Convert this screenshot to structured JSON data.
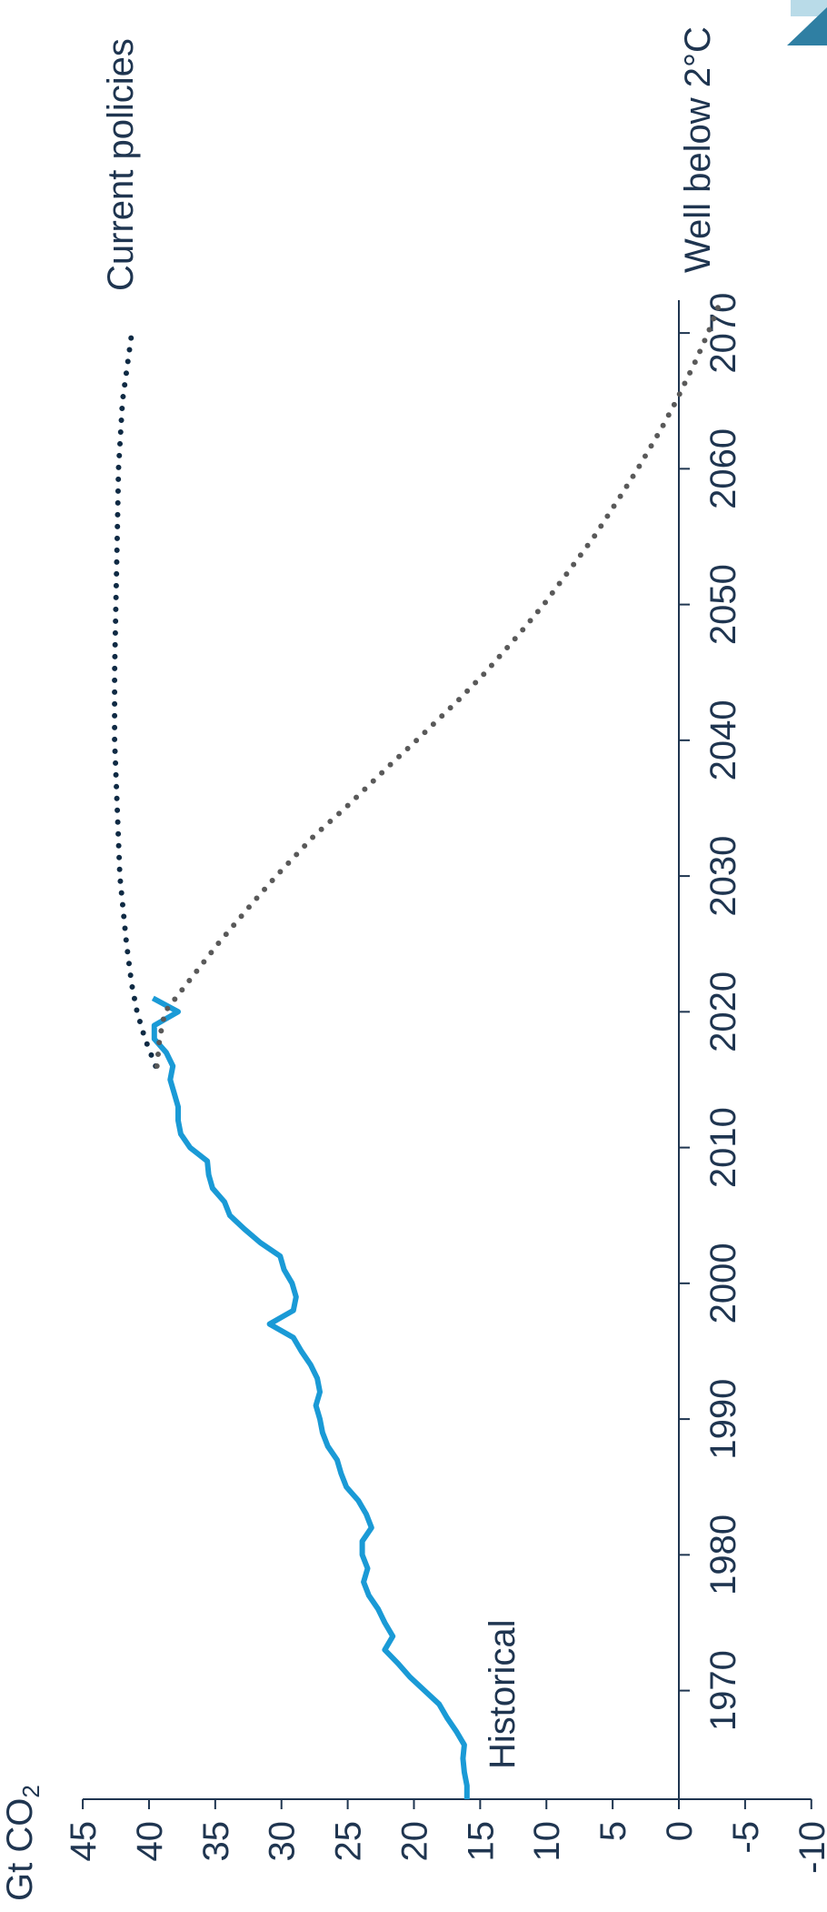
{
  "logo": {
    "color_light": "#b9dbe8",
    "color_dark": "#2f7fa3"
  },
  "chart_data": {
    "type": "line",
    "orientation": "rotated-90-ccw",
    "unit_label": {
      "main": "Gt CO",
      "sub": "2"
    },
    "xlim": [
      1962,
      2072
    ],
    "ylim": [
      -10,
      45
    ],
    "x_ticks": [
      1970,
      1980,
      1990,
      2000,
      2010,
      2020,
      2030,
      2040,
      2050,
      2060,
      2070
    ],
    "y_ticks": [
      45,
      40,
      35,
      30,
      25,
      20,
      15,
      10,
      5,
      0,
      -5,
      -10
    ],
    "grid": false,
    "colors": {
      "Historical": "#1a9ad6",
      "Current policies": "#0f2a44",
      "Well below 2°C": "#595959",
      "axis": "#1f3550"
    },
    "series": [
      {
        "name": "Historical",
        "style": "solid",
        "x": [
          1962,
          1963,
          1964,
          1965,
          1966,
          1967,
          1968,
          1969,
          1970,
          1971,
          1972,
          1973,
          1974,
          1975,
          1976,
          1977,
          1978,
          1979,
          1980,
          1981,
          1982,
          1983,
          1984,
          1985,
          1986,
          1987,
          1988,
          1989,
          1990,
          1991,
          1992,
          1993,
          1994,
          1995,
          1996,
          1997,
          1998,
          1999,
          2000,
          2001,
          2002,
          2003,
          2004,
          2005,
          2006,
          2007,
          2008,
          2009,
          2010,
          2011,
          2012,
          2013,
          2014,
          2015,
          2016,
          2017,
          2018,
          2019,
          2020,
          2021
        ],
        "y": [
          16,
          16,
          16.2,
          16.3,
          16.2,
          16.8,
          17.5,
          18.1,
          19.2,
          20.3,
          21.2,
          22.2,
          21.6,
          22.2,
          22.7,
          23.4,
          23.8,
          23.5,
          23.9,
          23.9,
          23.2,
          23.6,
          24.2,
          25.1,
          25.5,
          25.8,
          26.5,
          26.9,
          27.1,
          27.4,
          27.1,
          27.3,
          27.8,
          28.5,
          29.1,
          30.9,
          29.1,
          28.9,
          29.2,
          29.8,
          30.1,
          31.6,
          32.8,
          33.9,
          34.3,
          35.2,
          35.5,
          35.6,
          36.9,
          37.6,
          37.8,
          37.8,
          38.1,
          38.4,
          38.2,
          38.7,
          39.6,
          39.6,
          37.8,
          39.7
        ]
      },
      {
        "name": "Current policies",
        "style": "dotted",
        "x": [
          2016,
          2018,
          2020,
          2022,
          2025,
          2028,
          2030,
          2035,
          2040,
          2045,
          2050,
          2055,
          2060,
          2065,
          2070
        ],
        "y": [
          39.5,
          40.3,
          40.9,
          41.3,
          41.7,
          42.0,
          42.2,
          42.4,
          42.6,
          42.6,
          42.5,
          42.4,
          42.3,
          42.0,
          41.3
        ]
      },
      {
        "name": "Well below 2°C",
        "style": "dotted",
        "x": [
          2016,
          2018,
          2020,
          2022,
          2025,
          2028,
          2030,
          2033,
          2035,
          2038,
          2040,
          2043,
          2045,
          2048,
          2050,
          2053,
          2055,
          2058,
          2060,
          2063,
          2065,
          2068,
          2070,
          2072
        ],
        "y": [
          39.4,
          39.2,
          38.8,
          37.2,
          34.8,
          32.2,
          30.4,
          27.5,
          25.2,
          22.0,
          19.8,
          16.6,
          14.6,
          11.9,
          10.2,
          7.9,
          6.4,
          4.4,
          3.1,
          1.3,
          0.2,
          -1.3,
          -2.2,
          -3.0
        ]
      }
    ]
  }
}
